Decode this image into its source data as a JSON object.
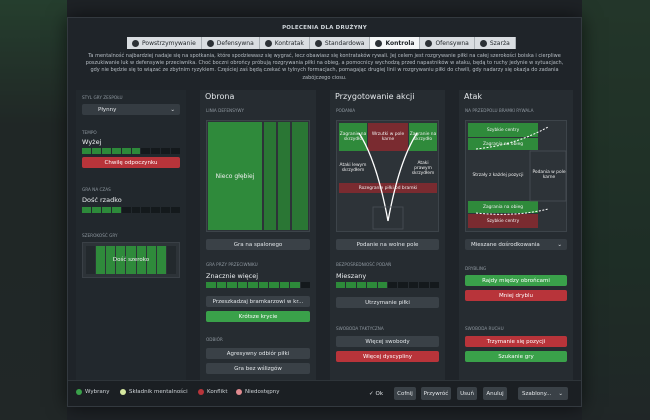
{
  "title": "POLECENIA DLA DRUŻYNY",
  "tabs": [
    {
      "label": "Powstrzymywanie"
    },
    {
      "label": "Defensywna"
    },
    {
      "label": "Kontratak"
    },
    {
      "label": "Standardowa"
    },
    {
      "label": "Kontrola"
    },
    {
      "label": "Ofensywna"
    },
    {
      "label": "Szarża"
    }
  ],
  "description": "Ta mentalność najbardziej nadaje się na spotkania, które spodziewasz się wygrać, lecz obawiasz się kontrataków rywali. Jej celem jest rozgrywanie piłki na całej szerokości boiska i cierpliwe poszukiwanie luk w defensywie przeciwnika. Choć boczni obrońcy próbują rozgrywania piłki na obieg, a pomocnicy wychodzą przed napastników w ataku, będą to ruchy jedynie w sytuacjach, gdy nie będzie się to wiązać ze zbytnim ryzykiem. Częściej zaś będą czekać w tylnych formacjach, pomagając drugiej linii w rozgrywaniu piłki do chwili, gdy nadarzy się okazja do zadania zabójczego ciosu.",
  "left": {
    "style_label": "STYL GRY ZESPOŁU",
    "style_value": "Płynny",
    "tempo_label": "TEMPO",
    "tempo_value": "Wyżej",
    "tempo_level": 0.6,
    "tempo_button": "Chwilę odpoczynku",
    "timewaste_label": "GRA NA CZAS",
    "timewaste_value": "Dość rzadko",
    "timewaste_level": 0.4,
    "width_label": "SZEROKOŚĆ GRY",
    "width_value": "Dość szeroko"
  },
  "defense": {
    "header": "Obrona",
    "line_label": "LINIA DEFENSYWY",
    "line_value": "Nieco głębiej",
    "offside_button": "Gra na spalonego",
    "pressing_label": "GRA PRZY PRZECIWNIKU",
    "pressing_value": "Znacznie więcej",
    "pressing_level": 0.85,
    "gk_button": "Przeszkadzaj bramkarzowi w kr...",
    "marking_button": "Krótsze krycie",
    "tackle_label": "ODBIÓR",
    "tackle_button": "Agresywny odbiór piłki",
    "feet_button": "Gra bez wślizgów"
  },
  "build": {
    "header": "Przygotowanie akcji",
    "passing_label": "PODANIA",
    "zones": {
      "left_wing_top": "Zagranie na skrzydło",
      "center_top": "Wrzutki w pole karne",
      "right_wing_top": "Zagranie na skrzydło",
      "left_mid": "Ataki lewym skrzydłem",
      "right_mid": "Ataki prawym skrzydłem",
      "bottom": "Rozegranie piłki od bramki"
    },
    "space_button": "Podanie na wolne pole",
    "risk_label": "BEZPOŚREDNIOŚĆ PODAŃ",
    "risk_value": "Mieszany",
    "risk_level": 0.5,
    "keep_button": "Utrzymanie piłki",
    "freedom_label": "SWOBODA TAKTYCZNA",
    "freedom_button1": "Więcej swobody",
    "freedom_button2": "Więcej dyscypliny"
  },
  "attack": {
    "header": "Atak",
    "final_label": "NA PRZEDPOLU BRAMKI RYWALA",
    "zones": {
      "fast_top": "Szybkie centry",
      "overlap_top": "Zagrania na obieg",
      "shoot": "Strzały z każdej pozycji",
      "box": "Podania w pole karne",
      "overlap_bottom": "Zagrania na obieg",
      "fast_bottom": "Szybkie centry"
    },
    "cross_value": "Mieszane dośrodkowania",
    "dribble_label": "DRYBLING",
    "dribble_button1": "Rajdy między obrońcami",
    "dribble_button2": "Mniej dryblu",
    "movement_label": "SWOBODA RUCHU",
    "movement_button1": "Trzymanie się pozycji",
    "movement_button2": "Szukanie gry"
  },
  "legend": [
    {
      "label": "Wybrany",
      "color": "#3aa14a"
    },
    {
      "label": "Składnik mentalności",
      "color": "#d6e8a0"
    },
    {
      "label": "Konflikt",
      "color": "#b8343a"
    },
    {
      "label": "Niedostępny",
      "color": "#e08a8f"
    }
  ],
  "footer": {
    "ok": "Ok",
    "undo": "Cofnij",
    "restore": "Przywróć",
    "delete": "Usuń",
    "cancel": "Anuluj",
    "templates": "Szablony..."
  }
}
